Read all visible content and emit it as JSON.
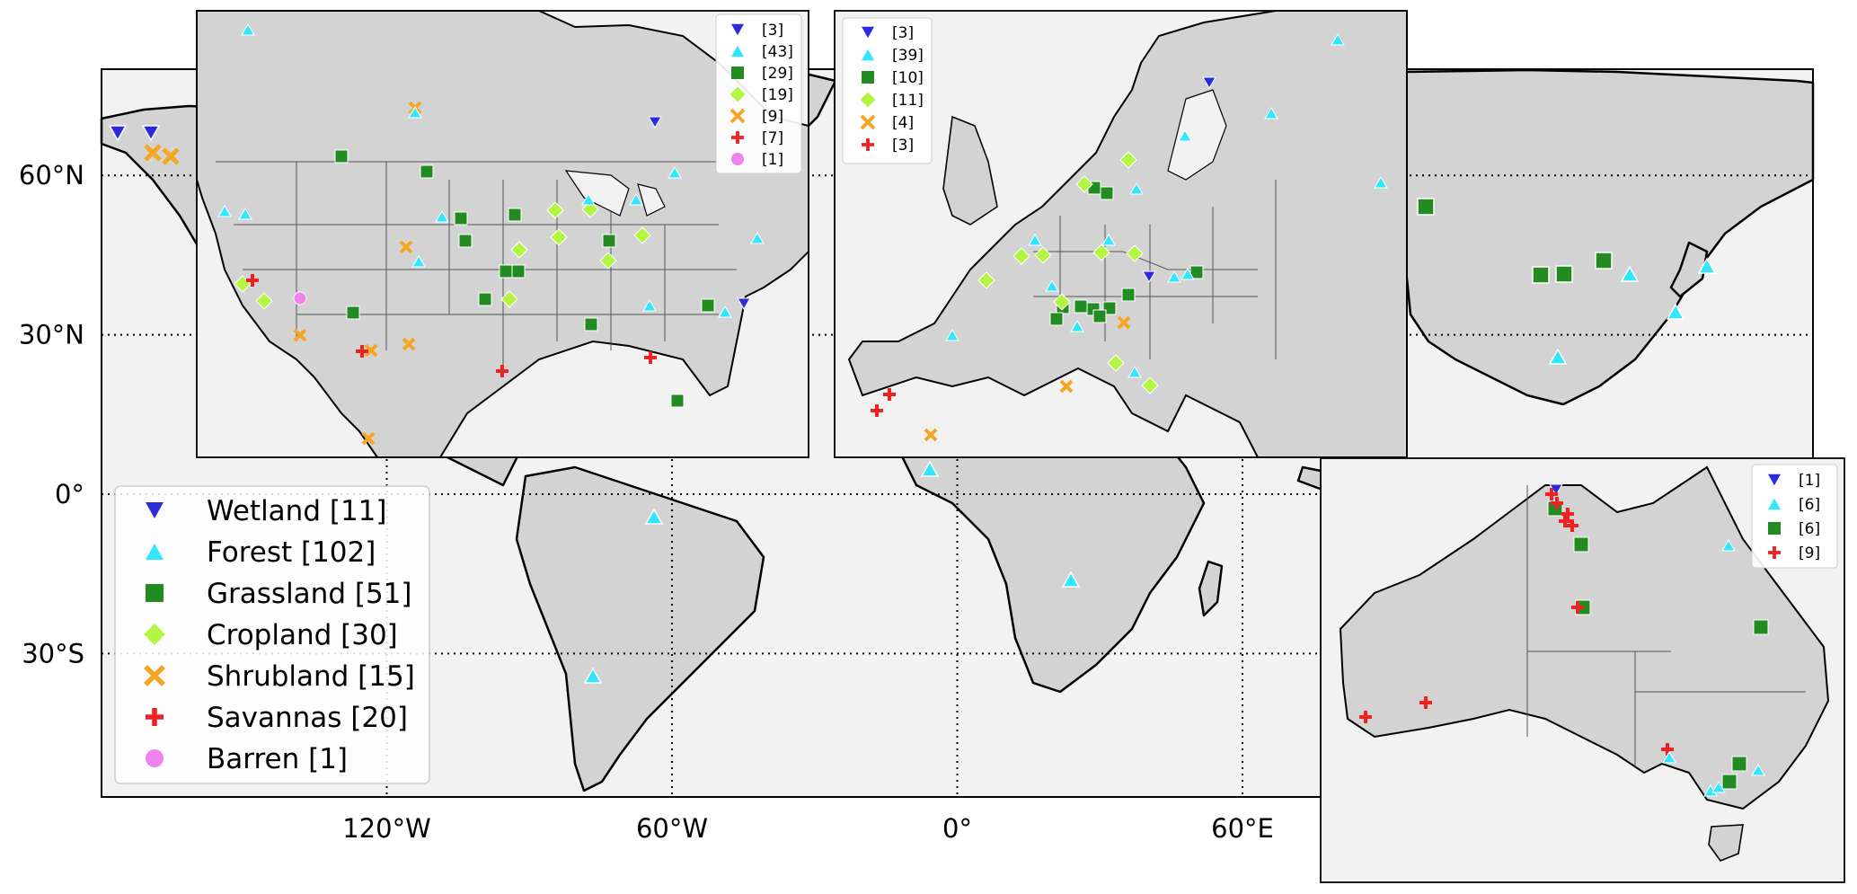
{
  "map": {
    "projection": "PlateCarree",
    "extent_lon": [
      -180,
      180
    ],
    "extent_lat": [
      -57,
      80
    ],
    "gridlines": true,
    "lat_ticks": [
      {
        "value": 60,
        "label": "60°N"
      },
      {
        "value": 30,
        "label": "30°N"
      },
      {
        "value": 0,
        "label": "0°"
      },
      {
        "value": -30,
        "label": "30°S"
      }
    ],
    "lon_ticks": [
      {
        "value": -120,
        "label": "120°W"
      },
      {
        "value": -60,
        "label": "60°W"
      },
      {
        "value": 0,
        "label": "0°"
      },
      {
        "value": 60,
        "label": "60°E"
      }
    ]
  },
  "colors": {
    "land": "#d3d3d3",
    "ocean": "#f2f2f2",
    "coast": "#000000",
    "border": "#555555",
    "wetland": "#2b2bdc",
    "forest": "#33e6ff",
    "grassland": "#228b22",
    "cropland": "#b3f542",
    "shrubland": "#f5a623",
    "savannas": "#ee2222",
    "barren": "#ee82ee"
  },
  "legend": {
    "placement": "lower-left",
    "items": [
      {
        "key": "wetland",
        "label": "Wetland [11]",
        "marker": "triangle-down"
      },
      {
        "key": "forest",
        "label": "Forest [102]",
        "marker": "triangle-up"
      },
      {
        "key": "grassland",
        "label": "Grassland [51]",
        "marker": "square"
      },
      {
        "key": "cropland",
        "label": "Cropland [30]",
        "marker": "diamond"
      },
      {
        "key": "shrubland",
        "label": "Shrubland [15]",
        "marker": "x"
      },
      {
        "key": "savannas",
        "label": "Savannas [20]",
        "marker": "plus"
      },
      {
        "key": "barren",
        "label": "Barren [1]",
        "marker": "circle"
      }
    ]
  },
  "insets": {
    "north_america": {
      "legend": [
        {
          "key": "wetland",
          "label": "[3]"
        },
        {
          "key": "forest",
          "label": "[43]"
        },
        {
          "key": "grassland",
          "label": "[29]"
        },
        {
          "key": "cropland",
          "label": "[19]"
        },
        {
          "key": "shrubland",
          "label": "[9]"
        },
        {
          "key": "savannas",
          "label": "[7]"
        },
        {
          "key": "barren",
          "label": "[1]"
        }
      ]
    },
    "europe": {
      "legend": [
        {
          "key": "wetland",
          "label": "[3]"
        },
        {
          "key": "forest",
          "label": "[39]"
        },
        {
          "key": "grassland",
          "label": "[10]"
        },
        {
          "key": "cropland",
          "label": "[11]"
        },
        {
          "key": "shrubland",
          "label": "[4]"
        },
        {
          "key": "savannas",
          "label": "[3]"
        }
      ]
    },
    "australia": {
      "legend": [
        {
          "key": "wetland",
          "label": "[1]"
        },
        {
          "key": "forest",
          "label": "[6]"
        },
        {
          "key": "grassland",
          "label": "[6]"
        },
        {
          "key": "savannas",
          "label": "[9]"
        }
      ]
    }
  }
}
